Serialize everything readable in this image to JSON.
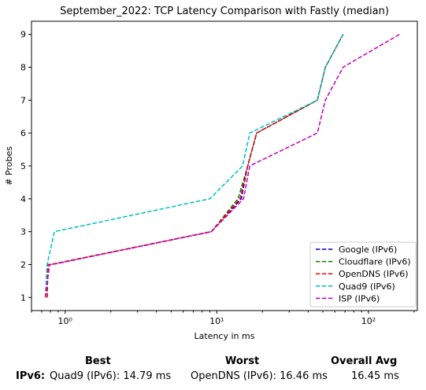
{
  "chart_data": {
    "type": "line",
    "title": "September_2022: TCP Latency Comparison with Fastly (median)",
    "xlabel": "Latency in ms",
    "ylabel": "# Probes",
    "xscale": "log",
    "xlim": [
      0.6,
      210
    ],
    "ylim": [
      0.6,
      9.4
    ],
    "xticks": [
      1,
      10,
      100
    ],
    "xtick_labels": [
      "10⁰",
      "10¹",
      "10²"
    ],
    "yticks": [
      1,
      2,
      3,
      4,
      5,
      6,
      7,
      8,
      9
    ],
    "grid": false,
    "legend_position": "bottom-right",
    "series": [
      {
        "name": "Google (IPv6)",
        "color": "#0000bf",
        "x": [
          0.76,
          0.77,
          0.8,
          9.2,
          14.5,
          16.0,
          18.3,
          46.0,
          52.0,
          68.0
        ],
        "y": [
          1,
          2,
          2,
          3,
          4,
          5,
          6,
          7,
          8,
          9
        ]
      },
      {
        "name": "Cloudflare (IPv6)",
        "color": "#008000",
        "x": [
          0.76,
          0.77,
          0.8,
          9.2,
          13.8,
          16.0,
          18.3,
          46.0,
          52.0,
          68.0
        ],
        "y": [
          1,
          2,
          2,
          3,
          4,
          5,
          6,
          7,
          8,
          9
        ]
      },
      {
        "name": "OpenDNS (IPv6)",
        "color": "#ff0000",
        "x": [
          0.76,
          0.77,
          0.8,
          9.2,
          14.2,
          16.0,
          18.3,
          46.0,
          52.0,
          68.0
        ],
        "y": [
          1,
          2,
          2,
          3,
          4,
          5,
          6,
          7,
          8,
          9
        ]
      },
      {
        "name": "Quad9 (IPv6)",
        "color": "#00bfbf",
        "x": [
          0.74,
          0.76,
          0.85,
          9.0,
          14.8,
          16.5,
          46.0,
          52.0,
          68.0
        ],
        "y": [
          1,
          2,
          3,
          4,
          5,
          6,
          7,
          8,
          9
        ]
      },
      {
        "name": "ISP (IPv6)",
        "color": "#bf00bf",
        "x": [
          0.74,
          0.79,
          0.82,
          9.2,
          15.0,
          16.5,
          46.0,
          52.0,
          68.0,
          160.0
        ],
        "y": [
          1,
          2,
          2,
          3,
          4,
          5,
          6,
          7,
          8,
          9
        ]
      }
    ]
  },
  "summary": {
    "best_header": "Best",
    "worst_header": "Worst",
    "avg_header": "Overall Avg",
    "row_label": "IPv6:",
    "best_value": "Quad9 (IPv6): 14.79 ms",
    "worst_value": "OpenDNS (IPv6): 16.46 ms",
    "avg_value": "16.45 ms"
  }
}
